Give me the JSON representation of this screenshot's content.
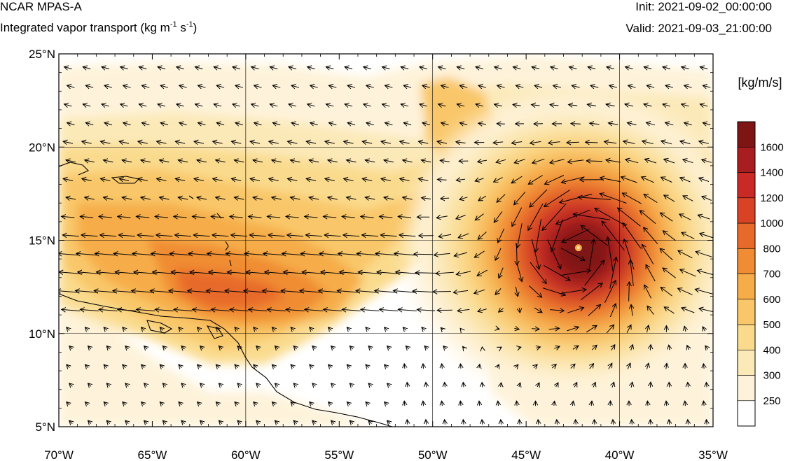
{
  "header": {
    "title": "NCAR MPAS-A",
    "subtitle_main": "Integrated vapor transport (kg m",
    "subtitle_exp1": "-1",
    "subtitle_mid": " s",
    "subtitle_exp2": "-1",
    "subtitle_end": ")",
    "init": "Init: 2021-09-02_00:00:00",
    "valid": "Valid: 2021-09-03_21:00:00"
  },
  "map": {
    "lon_range": [
      -70,
      -35
    ],
    "lat_range": [
      5,
      25
    ],
    "lon_ticks": [
      {
        "value": -70,
        "label": "70°W"
      },
      {
        "value": -65,
        "label": "65°W"
      },
      {
        "value": -60,
        "label": "60°W"
      },
      {
        "value": -55,
        "label": "55°W"
      },
      {
        "value": -50,
        "label": "50°W"
      },
      {
        "value": -45,
        "label": "45°W"
      },
      {
        "value": -40,
        "label": "40°W"
      },
      {
        "value": -35,
        "label": "35°W"
      }
    ],
    "lat_ticks": [
      {
        "value": 5,
        "label": "5°N"
      },
      {
        "value": 10,
        "label": "10°N"
      },
      {
        "value": 15,
        "label": "15°N"
      },
      {
        "value": 20,
        "label": "20°N"
      },
      {
        "value": 25,
        "label": "25°N"
      }
    ],
    "gridlines": {
      "lon": [
        -60,
        -50,
        -40
      ],
      "lat": [
        10,
        15,
        20
      ]
    },
    "cyclone_center": {
      "lon": -42.2,
      "lat": 14.6
    },
    "colors": {
      "white": "#ffffff",
      "c250": "#fef3da",
      "c300": "#fce9b8",
      "c400": "#fadb8e",
      "c500": "#f9c769",
      "c600": "#f6ad49",
      "c700": "#f08c33",
      "c800": "#e86a2b",
      "c1000": "#d84325",
      "c1200": "#c92a26",
      "c1400": "#a81d1f",
      "c1600": "#7d1515"
    }
  },
  "colorbar": {
    "unit": "[kg/m/s]",
    "levels": [
      {
        "label": "",
        "color": "#ffffff"
      },
      {
        "label": "250",
        "color": "#fef3da"
      },
      {
        "label": "300",
        "color": "#fce9b8"
      },
      {
        "label": "400",
        "color": "#fadb8e"
      },
      {
        "label": "500",
        "color": "#f9c769"
      },
      {
        "label": "600",
        "color": "#f6ad49"
      },
      {
        "label": "700",
        "color": "#f08c33"
      },
      {
        "label": "800",
        "color": "#e86a2b"
      },
      {
        "label": "1000",
        "color": "#d84325"
      },
      {
        "label": "1200",
        "color": "#c92a26"
      },
      {
        "label": "1400",
        "color": "#a81d1f"
      },
      {
        "label": "1600",
        "color": "#7d1515"
      }
    ]
  }
}
